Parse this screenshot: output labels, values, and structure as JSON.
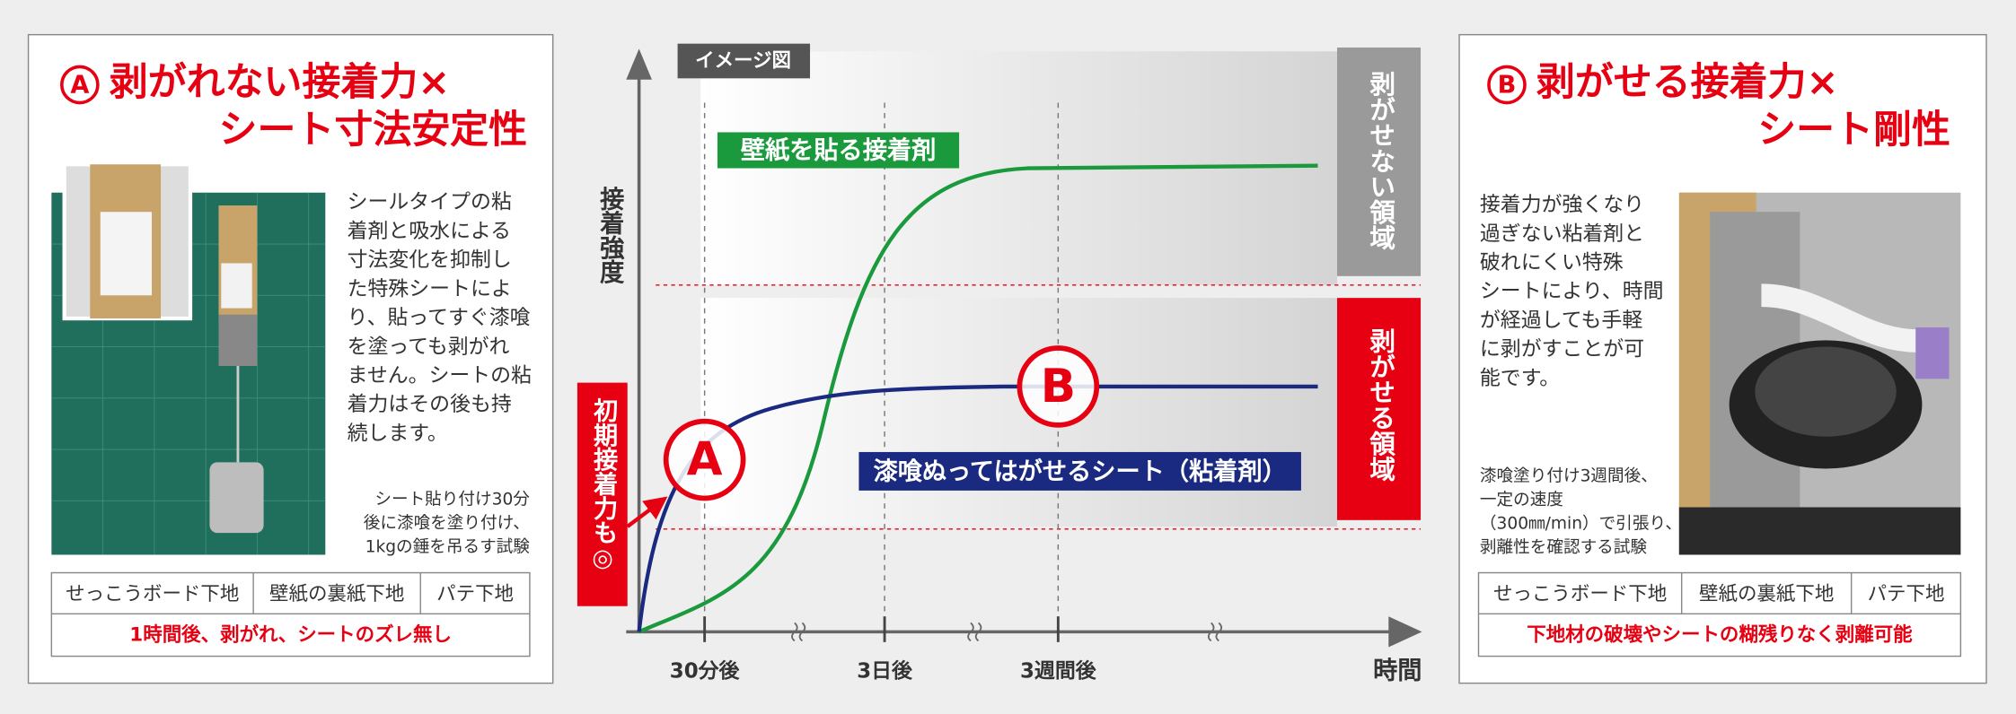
{
  "left_panel": {
    "marker": "A",
    "title_lines": [
      "剥がれない接着力×",
      "シート寸法安定性"
    ],
    "description_lines": [
      "シールタイプの粘",
      "着剤と吸水による",
      "寸法変化を抑制し",
      "た特殊シートによ",
      "り、貼ってすぐ漆喰",
      "を塗っても剥がれ",
      "ません。シートの粘",
      "着力はその後も持",
      "続します。"
    ],
    "caption_lines": [
      "シート貼り付け30分",
      "後に漆喰を塗り付け、",
      "1kgの錘を吊るす試験"
    ],
    "table": {
      "headers": [
        "せっこうボード下地",
        "壁紙の裏紙下地",
        "パテ下地"
      ],
      "result": "1時間後、剥がれ、シートのズレ無し"
    }
  },
  "chart": {
    "badge": "イメージ図",
    "y_axis_label": "接着強度",
    "x_axis_label": "時間",
    "x_ticks": [
      "30分後",
      "3日後",
      "3週間後"
    ],
    "zone_top": "剥がせない領域",
    "zone_bottom": "剥がせる領域",
    "initial_note": "初期接着力も◎",
    "curve_green_label": "壁紙を貼る接着剤",
    "curve_blue_label": "漆喰ぬってはがせるシート（粘着剤）",
    "marker_a": "A",
    "marker_b": "B"
  },
  "right_panel": {
    "marker": "B",
    "title_lines": [
      "剥がせる接着力×",
      "シート剛性"
    ],
    "description_lines": [
      "接着力が強くなり",
      "過ぎない粘着剤と",
      "破れにくい特殊",
      "シートにより、時間",
      "が経過しても手軽",
      "に剥がすことが可",
      "能です。"
    ],
    "caption_lines": [
      "漆喰塗り付け3週間後、",
      "一定の速度",
      "（300㎜/min）で引張り、",
      "剥離性を確認する試験"
    ],
    "table": {
      "headers": [
        "せっこうボード下地",
        "壁紙の裏紙下地",
        "パテ下地"
      ],
      "result": "下地材の破壊やシートの糊残りなく剥離可能"
    }
  }
}
